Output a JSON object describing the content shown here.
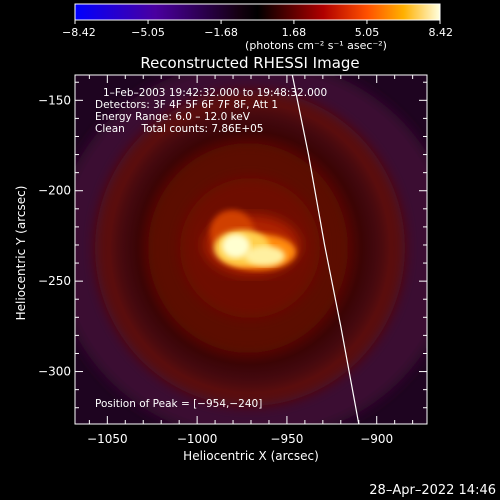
{
  "chart_data": {
    "type": "heatmap",
    "title": "Reconstructed RHESSI Image",
    "xlabel": "Heliocentric X (arcsec)",
    "ylabel": "Heliocentric Y (arcsec)",
    "xlim": [
      -1068,
      -872
    ],
    "ylim": [
      -329,
      -136
    ],
    "x_ticks": [
      {
        "value": -1050,
        "label": "−1050"
      },
      {
        "value": -1000,
        "label": "−1000"
      },
      {
        "value": -950,
        "label": "−950"
      },
      {
        "value": -900,
        "label": "−900"
      }
    ],
    "y_ticks": [
      {
        "value": -150,
        "label": "−150"
      },
      {
        "value": -200,
        "label": "−200"
      },
      {
        "value": -250,
        "label": "−250"
      },
      {
        "value": -300,
        "label": "−300"
      }
    ],
    "colorbar": {
      "min": -8.42,
      "max": 8.42,
      "tick_labels": [
        "−8.42",
        "−5.05",
        "−1.68",
        "1.68",
        "5.05",
        "8.42"
      ],
      "unit_label": "(photons cm⁻² s⁻¹ asec⁻²)"
    },
    "annotations": [
      "1–Feb–2003 19:42:32.000 to 19:48:32.000",
      "Detectors: 3F 4F 5F 6F 7F 8F, Att 1",
      "Energy Range: 6.0 – 12.0 keV",
      "Clean     Total counts: 7.86E+05"
    ],
    "peak_label": "Position of Peak = [−954,−240]",
    "peak": {
      "x": -954,
      "y": -240
    },
    "limb": [
      [
        -947,
        -136
      ],
      [
        -938,
        -180
      ],
      [
        -929,
        -230
      ],
      [
        -920,
        -275
      ],
      [
        -910,
        -329
      ]
    ],
    "grid": false,
    "colors": {
      "limb": "#ffffff",
      "background": "#000000"
    }
  },
  "footer": {
    "timestamp": "28–Apr–2022 14:46"
  }
}
